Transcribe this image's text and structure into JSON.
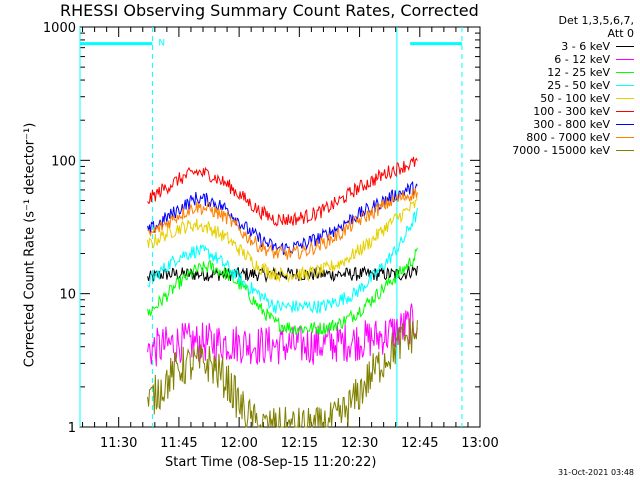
{
  "chart_data": {
    "type": "line",
    "title": "RHESSI Observing Summary Count Rates, Corrected",
    "xlabel": "Start Time (08-Sep-15 11:20:22)",
    "ylabel": "Corrected Count Rate (s⁻¹ detector⁻¹)",
    "yscale": "log",
    "ylim": [
      1,
      1000
    ],
    "yticks": [
      "1",
      "10",
      "100",
      "1000"
    ],
    "xlim": [
      11.3394,
      13.0
    ],
    "xticks": [
      {
        "label": "11:30",
        "value": 11.5
      },
      {
        "label": "11:45",
        "value": 11.75
      },
      {
        "label": "12:00",
        "value": 12.0
      },
      {
        "label": "12:15",
        "value": 12.25
      },
      {
        "label": "12:30",
        "value": 12.5
      },
      {
        "label": "12:45",
        "value": 12.75
      },
      {
        "label": "13:00",
        "value": 13.0
      }
    ],
    "x_hours": [
      11.62,
      11.68,
      11.75,
      11.82,
      11.88,
      11.95,
      12.02,
      12.08,
      12.15,
      12.22,
      12.28,
      12.35,
      12.42,
      12.48,
      12.55,
      12.62,
      12.68,
      12.72,
      12.74
    ],
    "series": [
      {
        "name": "3 - 6 keV",
        "color": "#000000",
        "values": [
          13,
          14,
          14,
          14,
          14,
          14,
          14,
          14,
          14,
          14,
          14,
          14,
          14,
          14,
          14,
          14,
          14,
          15,
          15
        ]
      },
      {
        "name": "6 - 12 keV",
        "color": "#ff00ff",
        "values": [
          3.8,
          4.0,
          4.3,
          4.3,
          4.3,
          4.3,
          4.2,
          4.1,
          4.1,
          4.1,
          4.1,
          4.2,
          4.3,
          4.4,
          4.6,
          5.0,
          5.5,
          6.0,
          6.2
        ]
      },
      {
        "name": "12 - 25 keV",
        "color": "#00ff00",
        "values": [
          7,
          9,
          12,
          15,
          16,
          14,
          11,
          8,
          6,
          5.5,
          5.5,
          5.5,
          6,
          7,
          9,
          12,
          15,
          18,
          20
        ]
      },
      {
        "name": "25 - 50 keV",
        "color": "#00ffff",
        "values": [
          12,
          15,
          19,
          21,
          20,
          16,
          12,
          10,
          8,
          8,
          8,
          8,
          9,
          10,
          13,
          18,
          25,
          35,
          40
        ]
      },
      {
        "name": "50 - 100 keV",
        "color": "#e6d000",
        "values": [
          23,
          27,
          31,
          33,
          31,
          26,
          20,
          16,
          14,
          14,
          14,
          15,
          17,
          20,
          25,
          33,
          40,
          45,
          48
        ]
      },
      {
        "name": "100 - 300 keV",
        "color": "#ff0000",
        "values": [
          50,
          60,
          72,
          82,
          78,
          66,
          52,
          42,
          36,
          36,
          38,
          42,
          50,
          60,
          70,
          82,
          90,
          95,
          98
        ]
      },
      {
        "name": "300 - 800 keV",
        "color": "#0000ff",
        "values": [
          29,
          35,
          43,
          52,
          50,
          43,
          32,
          26,
          22,
          22,
          24,
          27,
          32,
          38,
          44,
          52,
          58,
          62,
          63
        ]
      },
      {
        "name": "800 - 7000 keV",
        "color": "#ff8000",
        "values": [
          27,
          32,
          39,
          45,
          43,
          37,
          28,
          23,
          20,
          20,
          21,
          24,
          28,
          34,
          40,
          48,
          53,
          56,
          58
        ]
      },
      {
        "name": "7000 - 15000 keV",
        "color": "#808000",
        "values": [
          1.5,
          2.0,
          2.8,
          3.0,
          3.0,
          2.2,
          1.3,
          1.0,
          1.0,
          1.0,
          1.0,
          1.0,
          1.2,
          1.6,
          2.5,
          3.5,
          4.5,
          5.0,
          5.0
        ]
      }
    ],
    "saa_bars": [
      {
        "x0": 11.3394,
        "x1": 11.64,
        "y": 750
      },
      {
        "x0": 12.71,
        "x1": 12.925,
        "y": 750
      }
    ],
    "night_lines_solid": [
      11.3394,
      12.655
    ],
    "night_lines_dashed": [
      11.64,
      12.925
    ],
    "flags": [
      {
        "x": 11.665,
        "y": 780,
        "text": "N"
      }
    ],
    "legend": {
      "header": [
        "Det 1,3,5,6,7,",
        "Att 0"
      ],
      "placement": "right"
    },
    "footer": "31-Oct-2021 03:48",
    "colors": {
      "night_line": "#00ffff",
      "axes": "#000000",
      "background": "#ffffff"
    }
  }
}
